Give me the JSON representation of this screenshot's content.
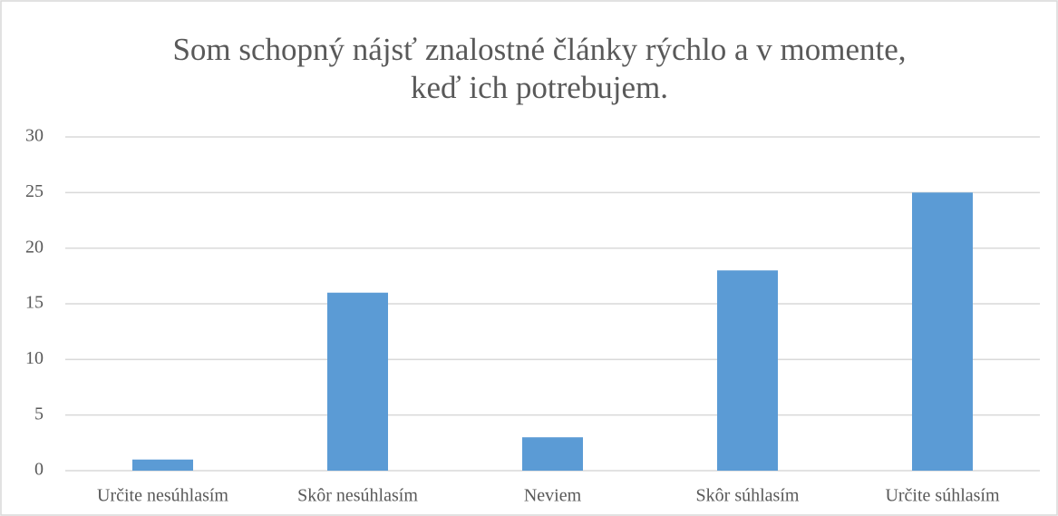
{
  "chart_data": {
    "type": "bar",
    "title": [
      "Som schopný nájsť znalostné články rýchlo a v momente,",
      "keď ich potrebujem."
    ],
    "categories": [
      "Určite nesúhlasím",
      "Skôr nesúhlasím",
      "Neviem",
      "Skôr súhlasím",
      "Určite súhlasím"
    ],
    "values": [
      1,
      16,
      3,
      18,
      25
    ],
    "color": "#5b9bd5",
    "ylim": [
      0,
      30
    ],
    "yticks": [
      0,
      5,
      10,
      15,
      20,
      25,
      30
    ],
    "grid": true
  }
}
